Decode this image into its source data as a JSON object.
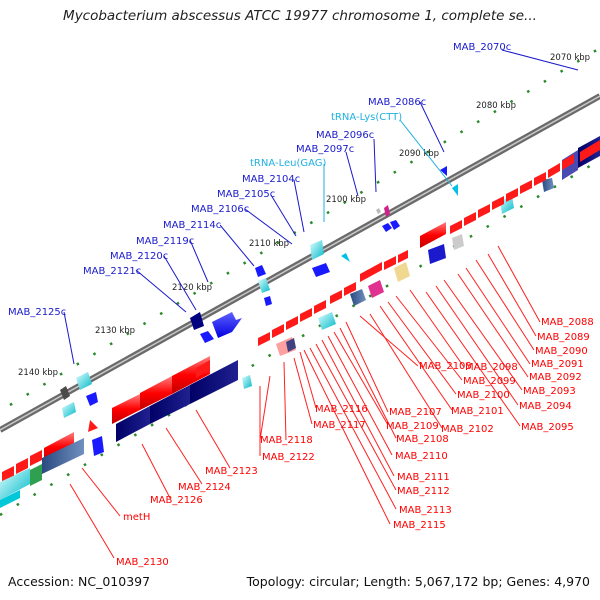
{
  "title": "Mycobacterium abscessus ATCC 19977 chromosome 1, complete se...",
  "footer": {
    "accession": "Accession: NC_010397",
    "summary": "Topology: circular; Length: 5,067,172 bp; Genes: 4,970"
  },
  "colors": {
    "forward_gene": "#ff1a1a",
    "reverse_gene": "#1a1aff",
    "trna_label": "#20b0e0",
    "gene_label_forward": "#ff0000",
    "gene_label_reverse": "#1a1acc",
    "backbone": "#888888",
    "tick_dots": "#2a8a2a"
  },
  "kbp_ticks": [
    "2070 kbp",
    "2080 kbp",
    "2090 kbp",
    "2100 kbp",
    "2110 kbp",
    "2120 kbp",
    "2130 kbp",
    "2140 kbp"
  ],
  "labels_reverse": [
    "MAB_2070c",
    "MAB_2086c",
    "MAB_2096c",
    "MAB_2097c",
    "MAB_2104c",
    "MAB_2105c",
    "MAB_2106c",
    "MAB_2114c",
    "MAB_2119c",
    "MAB_2120c",
    "MAB_2121c",
    "MAB_2125c"
  ],
  "labels_trna": [
    "tRNA-Lys(CTT)",
    "tRNA-Leu(GAG)"
  ],
  "labels_forward": [
    "MAB_2088",
    "MAB_2089",
    "MAB_2090",
    "MAB_2091",
    "MAB_2092",
    "MAB_2093",
    "MAB_2094",
    "MAB_2095",
    "MAB_2098",
    "MAB_2099",
    "MAB_2100",
    "MAB_2101",
    "MAB_2102",
    "MAB_2103",
    "MAB_2107",
    "MAB_2108",
    "MAB_2109",
    "MAB_2110",
    "MAB_2111",
    "MAB_2112",
    "MAB_2113",
    "MAB_2115",
    "MAB_2116",
    "MAB_2117",
    "MAB_2118",
    "MAB_2122",
    "MAB_2123",
    "MAB_2124",
    "MAB_2126",
    "metH",
    "MAB_2130"
  ]
}
